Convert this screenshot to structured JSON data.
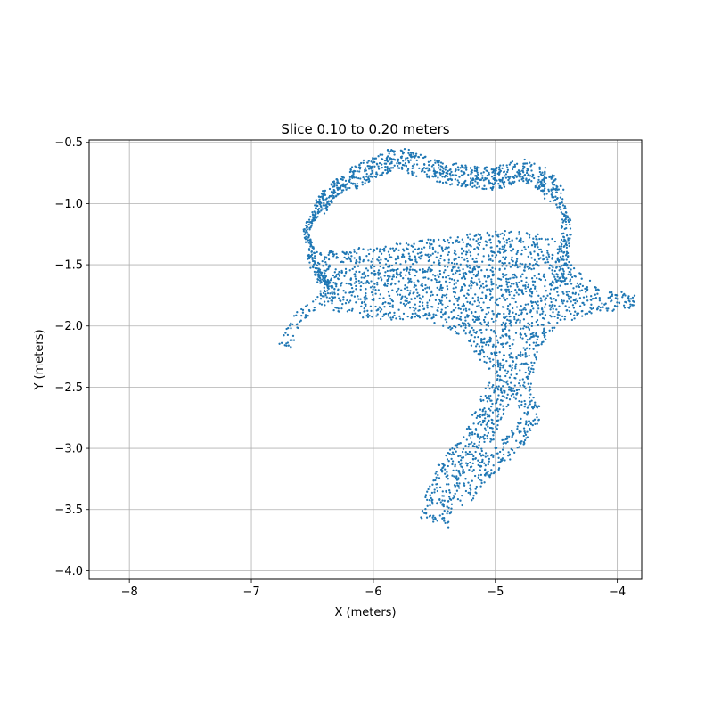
{
  "chart_data": {
    "type": "scatter",
    "title": "Slice 0.10 to 0.20 meters",
    "xlabel": "X (meters)",
    "ylabel": "Y (meters)",
    "xlim": [
      -8.33,
      -3.8
    ],
    "ylim": [
      -4.07,
      -0.48
    ],
    "xticks": [
      -8,
      -7,
      -6,
      -5,
      -4
    ],
    "yticks": [
      -4.0,
      -3.5,
      -3.0,
      -2.5,
      -2.0,
      -1.5,
      -1.0,
      -0.5
    ],
    "xtick_labels": [
      "−8",
      "−7",
      "−6",
      "−5",
      "−4"
    ],
    "ytick_labels": [
      "−4.0",
      "−3.5",
      "−3.0",
      "−2.5",
      "−2.0",
      "−1.5",
      "−1.0",
      "−0.5"
    ],
    "grid": true,
    "marker_color": "#1f77b4",
    "series": [
      {
        "regions": [
          {
            "kind": "band",
            "pts": [
              [
                -6.2,
                -0.82
              ],
              [
                -6.0,
                -0.7
              ],
              [
                -5.8,
                -0.62
              ],
              [
                -5.6,
                -0.7
              ],
              [
                -5.4,
                -0.75
              ],
              [
                -5.2,
                -0.78
              ],
              [
                -5.0,
                -0.8
              ],
              [
                -4.8,
                -0.72
              ],
              [
                -4.6,
                -0.8
              ],
              [
                -4.5,
                -0.95
              ]
            ],
            "width": 0.09,
            "n": 700
          },
          {
            "kind": "band",
            "pts": [
              [
                -6.45,
                -1.05
              ],
              [
                -6.35,
                -0.9
              ],
              [
                -6.22,
                -0.82
              ]
            ],
            "width": 0.06,
            "n": 140
          },
          {
            "kind": "band",
            "pts": [
              [
                -4.5,
                -0.95
              ],
              [
                -4.42,
                -1.1
              ],
              [
                -4.42,
                -1.3
              ],
              [
                -4.45,
                -1.45
              ],
              [
                -4.48,
                -1.65
              ]
            ],
            "width": 0.04,
            "n": 120
          },
          {
            "kind": "band",
            "pts": [
              [
                -6.45,
                -1.05
              ],
              [
                -6.55,
                -1.2
              ],
              [
                -6.52,
                -1.35
              ],
              [
                -6.5,
                -1.5
              ],
              [
                -6.42,
                -1.62
              ],
              [
                -6.3,
                -1.68
              ]
            ],
            "width": 0.03,
            "n": 170
          },
          {
            "kind": "band",
            "pts": [
              [
                -6.3,
                -1.68
              ],
              [
                -6.4,
                -1.78
              ],
              [
                -6.55,
                -1.85
              ],
              [
                -6.65,
                -2.0
              ],
              [
                -6.73,
                -2.18
              ]
            ],
            "width": 0.05,
            "n": 70
          },
          {
            "kind": "poly",
            "pts": [
              [
                -6.5,
                -1.4
              ],
              [
                -6.0,
                -1.35
              ],
              [
                -5.4,
                -1.27
              ],
              [
                -5.0,
                -1.22
              ],
              [
                -4.7,
                -1.23
              ],
              [
                -4.5,
                -1.3
              ],
              [
                -4.35,
                -1.5
              ],
              [
                -4.15,
                -1.7
              ],
              [
                -3.85,
                -1.72
              ],
              [
                -3.85,
                -1.85
              ],
              [
                -4.2,
                -1.9
              ],
              [
                -4.5,
                -2.0
              ],
              [
                -4.65,
                -2.2
              ],
              [
                -4.7,
                -2.5
              ],
              [
                -4.95,
                -2.55
              ],
              [
                -5.05,
                -2.4
              ],
              [
                -5.25,
                -2.1
              ],
              [
                -5.55,
                -1.95
              ],
              [
                -6.0,
                -1.95
              ],
              [
                -6.3,
                -1.9
              ],
              [
                -6.45,
                -1.75
              ]
            ],
            "n": 2000
          },
          {
            "kind": "band",
            "pts": [
              [
                -4.95,
                -2.5
              ],
              [
                -5.05,
                -2.7
              ],
              [
                -5.15,
                -2.95
              ],
              [
                -5.35,
                -3.15
              ],
              [
                -5.45,
                -3.4
              ],
              [
                -5.5,
                -3.62
              ]
            ],
            "width": 0.12,
            "n": 380
          },
          {
            "kind": "band",
            "pts": [
              [
                -4.8,
                -2.5
              ],
              [
                -4.7,
                -2.7
              ],
              [
                -4.75,
                -2.85
              ],
              [
                -4.95,
                -3.05
              ],
              [
                -5.15,
                -3.25
              ],
              [
                -5.3,
                -3.45
              ]
            ],
            "width": 0.08,
            "n": 220
          }
        ]
      }
    ]
  }
}
